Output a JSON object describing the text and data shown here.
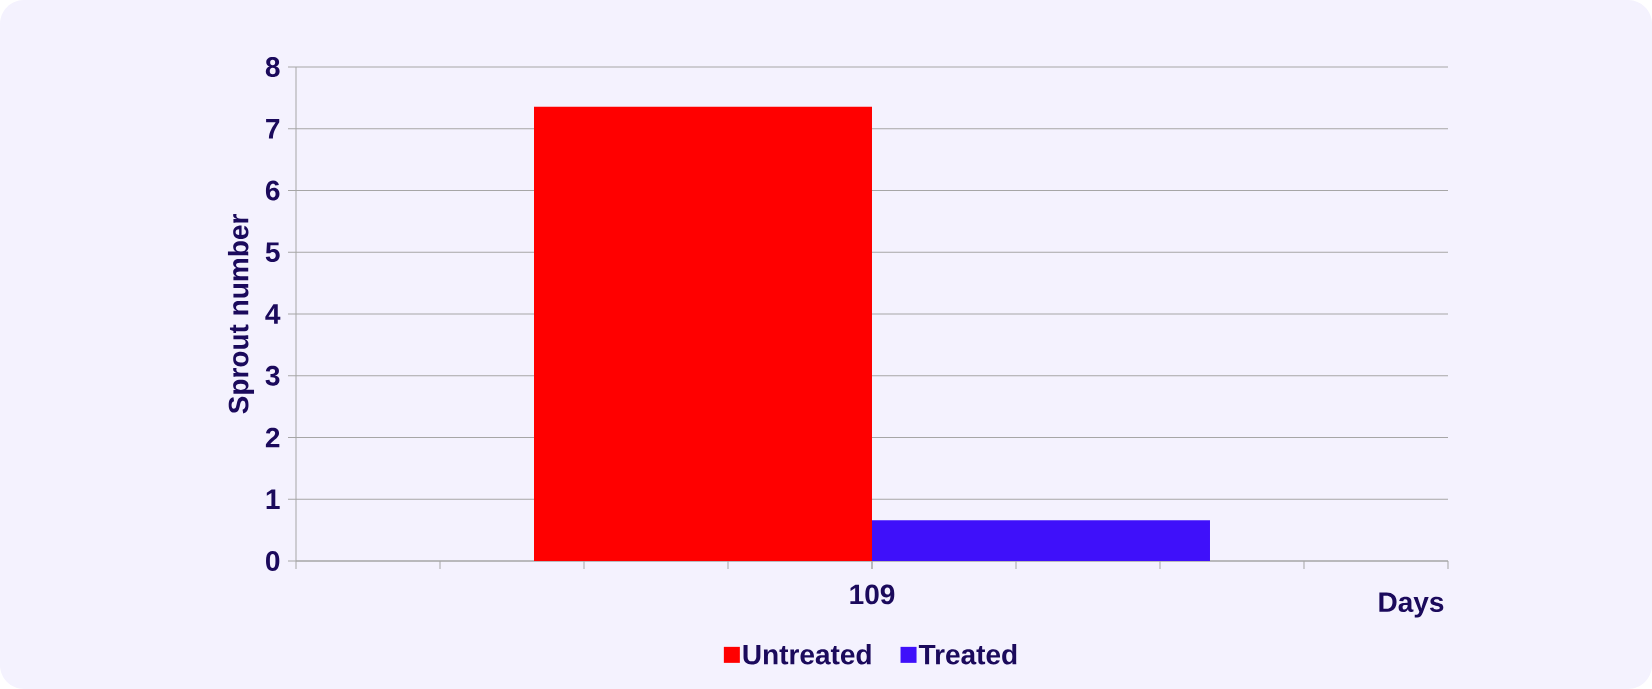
{
  "chart_data": {
    "type": "bar",
    "categories": [
      "109"
    ],
    "xlabel": "Days",
    "ylabel": "Sprout number",
    "series": [
      {
        "name": "Untreated",
        "color": "#ff0000",
        "values": [
          7.36
        ]
      },
      {
        "name": "Treated",
        "color": "#3f10fa",
        "values": [
          0.66
        ]
      }
    ],
    "ylim": [
      0,
      8
    ],
    "yticks": [
      0,
      1,
      2,
      3,
      4,
      5,
      6,
      7,
      8
    ],
    "grid": "y",
    "legend": "bottom"
  }
}
